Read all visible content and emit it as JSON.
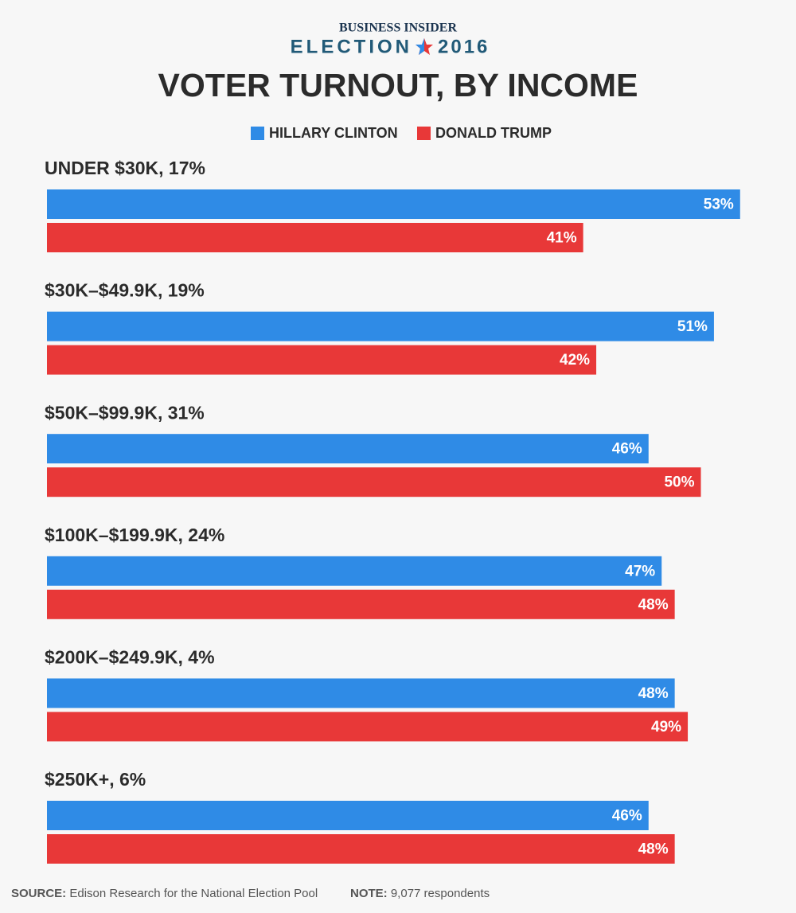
{
  "header": {
    "brand": "BUSINESS INSIDER",
    "election": "ELECTION",
    "year": "2016"
  },
  "chart_data": {
    "type": "bar",
    "orientation": "horizontal",
    "title": "VOTER TURNOUT, BY INCOME",
    "categories": [
      "UNDER $30K, 17%",
      "$30K–$49.9K, 19%",
      "$50K–$99.9K, 31%",
      "$100K–$199.9K, 24%",
      "$200K–$249.9K, 4%",
      "$250K+, 6%"
    ],
    "series": [
      {
        "name": "HILLARY CLINTON",
        "color": "#2f8be6",
        "values": [
          53,
          51,
          46,
          47,
          48,
          46
        ],
        "value_labels": [
          "53%",
          "51%",
          "46%",
          "47%",
          "48%",
          "46%"
        ]
      },
      {
        "name": "DONALD TRUMP",
        "color": "#e83838",
        "values": [
          41,
          42,
          50,
          48,
          49,
          48
        ],
        "value_labels": [
          "41%",
          "42%",
          "50%",
          "48%",
          "49%",
          "48%"
        ]
      }
    ]
  },
  "footer": {
    "source_label": "SOURCE:",
    "source": "Edison Research for the National Election Pool",
    "note_label": "NOTE:",
    "note": "9,077 respondents"
  }
}
